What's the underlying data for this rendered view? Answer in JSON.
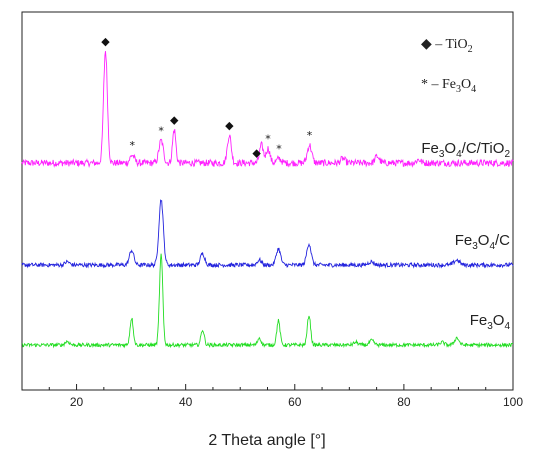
{
  "chart_data": {
    "type": "line",
    "title": "",
    "xlabel": "2 Theta angle [°]",
    "ylabel": "",
    "xlim": [
      10,
      100
    ],
    "xticks": [
      20,
      40,
      60,
      80,
      100
    ],
    "grid": false,
    "legend_position": "top-right",
    "legend": [
      {
        "symbol": "◆",
        "dash": " – ",
        "base": "TiO",
        "sub": "2",
        "tail": ""
      },
      {
        "symbol": "*",
        "dash": " – ",
        "base": "Fe",
        "sub": "3",
        "tail": "O",
        "sub2": "4"
      }
    ],
    "series": [
      {
        "name": "Fe3O4/C/TiO2",
        "label_parts": [
          "Fe",
          "3",
          "O",
          "4",
          "/C/TiO",
          "2"
        ],
        "color": "#ff22ff",
        "baseline": 0.0,
        "noise": 0.06,
        "peaks": [
          {
            "x": 25.3,
            "h": 1.0,
            "w": 0.35
          },
          {
            "x": 30.2,
            "h": 0.07,
            "w": 0.4
          },
          {
            "x": 35.5,
            "h": 0.2,
            "w": 0.4
          },
          {
            "x": 37.9,
            "h": 0.3,
            "w": 0.3
          },
          {
            "x": 48.0,
            "h": 0.25,
            "w": 0.35
          },
          {
            "x": 53.9,
            "h": 0.16,
            "w": 0.35
          },
          {
            "x": 55.1,
            "h": 0.13,
            "w": 0.35
          },
          {
            "x": 57.1,
            "h": 0.04,
            "w": 0.4
          },
          {
            "x": 62.7,
            "h": 0.16,
            "w": 0.4
          },
          {
            "x": 68.8,
            "h": 0.04,
            "w": 0.4
          },
          {
            "x": 75.1,
            "h": 0.06,
            "w": 0.4
          },
          {
            "x": 82.7,
            "h": 0.03,
            "w": 0.4
          }
        ],
        "markers": [
          {
            "x": 25.3,
            "symbol": "◆"
          },
          {
            "x": 30.2,
            "symbol": "*"
          },
          {
            "x": 35.5,
            "symbol": "*"
          },
          {
            "x": 37.9,
            "symbol": "◆"
          },
          {
            "x": 48.0,
            "symbol": "◆"
          },
          {
            "x": 53.0,
            "symbol": "◆"
          },
          {
            "x": 55.1,
            "symbol": "*"
          },
          {
            "x": 57.1,
            "symbol": "*"
          },
          {
            "x": 62.7,
            "symbol": "*"
          }
        ]
      },
      {
        "name": "Fe3O4/C",
        "label_parts": [
          "Fe",
          "3",
          "O",
          "4",
          "/C",
          ""
        ],
        "color": "#2222dd",
        "baseline": 0.0,
        "noise": 0.05,
        "peaks": [
          {
            "x": 18.3,
            "h": 0.04,
            "w": 0.4
          },
          {
            "x": 30.1,
            "h": 0.18,
            "w": 0.4
          },
          {
            "x": 35.5,
            "h": 0.8,
            "w": 0.4
          },
          {
            "x": 43.1,
            "h": 0.14,
            "w": 0.4
          },
          {
            "x": 53.5,
            "h": 0.06,
            "w": 0.4
          },
          {
            "x": 57.0,
            "h": 0.2,
            "w": 0.4
          },
          {
            "x": 62.6,
            "h": 0.26,
            "w": 0.4
          },
          {
            "x": 74.0,
            "h": 0.04,
            "w": 0.5
          },
          {
            "x": 89.7,
            "h": 0.06,
            "w": 0.5
          }
        ],
        "markers": []
      },
      {
        "name": "Fe3O4",
        "label_parts": [
          "Fe",
          "3",
          "O",
          "4",
          "",
          ""
        ],
        "color": "#22dd22",
        "baseline": 0.0,
        "noise": 0.04,
        "peaks": [
          {
            "x": 18.3,
            "h": 0.04,
            "w": 0.4
          },
          {
            "x": 30.1,
            "h": 0.3,
            "w": 0.3
          },
          {
            "x": 35.5,
            "h": 1.0,
            "w": 0.3
          },
          {
            "x": 43.1,
            "h": 0.17,
            "w": 0.3
          },
          {
            "x": 53.5,
            "h": 0.08,
            "w": 0.3
          },
          {
            "x": 57.0,
            "h": 0.27,
            "w": 0.3
          },
          {
            "x": 62.6,
            "h": 0.33,
            "w": 0.3
          },
          {
            "x": 71.2,
            "h": 0.03,
            "w": 0.4
          },
          {
            "x": 74.1,
            "h": 0.05,
            "w": 0.4
          },
          {
            "x": 87.0,
            "h": 0.03,
            "w": 0.4
          },
          {
            "x": 89.7,
            "h": 0.08,
            "w": 0.4
          }
        ],
        "markers": []
      }
    ]
  }
}
